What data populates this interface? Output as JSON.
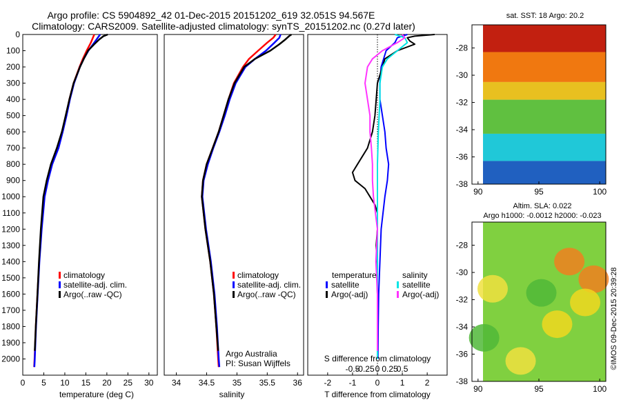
{
  "header": {
    "line1": "Argo profile: CS 5904892_42 01-Dec-2015 20151202_619 32.051S 94.567E",
    "line2": "Climatology: CARS2009. Satellite-adjusted climatology: synTS_20151202.nc (0.27d later)"
  },
  "credits": {
    "org": "Argo Australia",
    "pi": "PI: Susan Wijffels",
    "stamp": "©IMOS 09-Dec-2015 20:39:28"
  },
  "map_labels": {
    "sst_title": "sat. SST: 18 Argo: 20.2",
    "sla_title1": "Altim. SLA: 0.022",
    "sla_title2": "Argo h1000: -0.0012 h2000: -0.023"
  },
  "legends": {
    "temperature_panel": [
      "climatology",
      "satellite-adj. clim.",
      "Argo(..raw -QC)"
    ],
    "salinity_panel": [
      "climatology",
      "satellite-adj. clim.",
      "Argo(..raw -QC)"
    ],
    "diff_panel": {
      "temperature_head": "temperature",
      "salinity_head": "salinity",
      "satellite": "satellite",
      "argo_adj": "Argo(-adj)"
    }
  },
  "colors": {
    "climatology": "#ff0000",
    "satellite": "#0000ff",
    "argo": "#000000",
    "sal_satellite": "#00e5e5",
    "sal_argo": "#ff33ff"
  },
  "chart_data": [
    {
      "type": "line",
      "xlabel": "temperature (deg C)",
      "ylabel": "",
      "xlim": [
        0,
        32
      ],
      "ylim": [
        2100,
        0
      ],
      "xticks": [
        0,
        5,
        10,
        15,
        20,
        25,
        30
      ],
      "yticks": [
        0,
        100,
        200,
        300,
        400,
        500,
        600,
        700,
        800,
        900,
        1000,
        1100,
        1200,
        1300,
        1400,
        1500,
        1600,
        1700,
        1800,
        1900,
        2000
      ],
      "legend": "lower-left",
      "series": [
        {
          "name": "climatology",
          "depth": [
            0,
            50,
            100,
            150,
            200,
            300,
            400,
            500,
            600,
            700,
            800,
            900,
            1000,
            1200,
            1400,
            1600,
            1800,
            2000,
            2050
          ],
          "values": [
            17.0,
            16.2,
            15.2,
            14.3,
            13.5,
            12.1,
            11.1,
            10.3,
            9.4,
            8.3,
            6.8,
            5.9,
            5.1,
            4.4,
            3.9,
            3.5,
            3.1,
            2.8,
            2.7
          ]
        },
        {
          "name": "satellite-adj. clim.",
          "depth": [
            0,
            50,
            100,
            150,
            200,
            300,
            400,
            500,
            600,
            700,
            800,
            900,
            1000,
            1200,
            1400,
            1600,
            1800,
            2000,
            2050
          ],
          "values": [
            18.4,
            17.0,
            15.6,
            14.5,
            13.6,
            12.2,
            11.2,
            10.4,
            9.5,
            8.5,
            7.0,
            6.0,
            5.2,
            4.5,
            3.95,
            3.55,
            3.15,
            2.85,
            2.75
          ]
        },
        {
          "name": "Argo(..raw -QC)",
          "depth": [
            0,
            10,
            30,
            60,
            100,
            150,
            200,
            300,
            400,
            500,
            600,
            700,
            800,
            900,
            1000,
            1200,
            1400,
            1600,
            1800,
            1950
          ],
          "values": [
            20.2,
            19.2,
            18.2,
            17.0,
            15.5,
            14.5,
            13.6,
            12.1,
            11.1,
            10.2,
            9.3,
            8.1,
            6.7,
            5.7,
            4.9,
            4.3,
            3.85,
            3.5,
            3.1,
            2.85
          ]
        }
      ]
    },
    {
      "type": "line",
      "xlabel": "salinity",
      "ylabel": "",
      "xlim": [
        33.8,
        36.1
      ],
      "ylim": [
        2100,
        0
      ],
      "xticks": [
        34,
        34.5,
        35,
        35.5,
        36
      ],
      "legend": "lower-right",
      "series": [
        {
          "name": "climatology",
          "depth": [
            0,
            20,
            50,
            100,
            150,
            200,
            300,
            400,
            500,
            600,
            700,
            800,
            900,
            1000,
            1200,
            1400,
            1600,
            1800,
            2000,
            2050
          ],
          "values": [
            35.64,
            35.6,
            35.5,
            35.35,
            35.2,
            35.1,
            34.95,
            34.86,
            34.78,
            34.7,
            34.6,
            34.5,
            34.44,
            34.42,
            34.48,
            34.56,
            34.62,
            34.66,
            34.69,
            34.7
          ]
        },
        {
          "name": "satellite-adj. clim.",
          "depth": [
            0,
            20,
            50,
            100,
            150,
            200,
            300,
            400,
            500,
            600,
            700,
            800,
            900,
            1000,
            1200,
            1400,
            1600,
            1800,
            2000,
            2050
          ],
          "values": [
            35.72,
            35.7,
            35.62,
            35.48,
            35.3,
            35.14,
            34.98,
            34.88,
            34.8,
            34.71,
            34.61,
            34.52,
            34.45,
            34.43,
            34.49,
            34.57,
            34.63,
            34.67,
            34.7,
            34.71
          ]
        },
        {
          "name": "Argo(..raw -QC)",
          "depth": [
            0,
            10,
            30,
            60,
            100,
            150,
            200,
            300,
            400,
            500,
            600,
            700,
            800,
            900,
            1000,
            1200,
            1400,
            1600,
            1800,
            1950
          ],
          "values": [
            35.9,
            35.86,
            35.8,
            35.7,
            35.55,
            35.3,
            35.12,
            34.96,
            34.86,
            34.78,
            34.7,
            34.6,
            34.5,
            34.44,
            34.42,
            34.48,
            34.56,
            34.62,
            34.66,
            34.69
          ]
        }
      ]
    },
    {
      "type": "line",
      "xlabel": "T difference from climatology",
      "x2label": "S difference from climatology",
      "xlim": [
        -2.8,
        2.8
      ],
      "ylim": [
        2100,
        0
      ],
      "xticks": [
        -2,
        -1,
        0,
        1,
        2
      ],
      "x2ticks": [
        "-0.5",
        "-0.25",
        "0",
        "0.25",
        "0.5"
      ],
      "legend": "lower-center",
      "series": [
        {
          "name": "temperature satellite",
          "depth": [
            0,
            20,
            50,
            100,
            200,
            300,
            400,
            500,
            600,
            700,
            800,
            900,
            1000,
            1200,
            1400,
            1600,
            1800,
            2000
          ],
          "values": [
            1.2,
            0.8,
            0.7,
            0.35,
            0.15,
            0.1,
            0.1,
            0.2,
            0.3,
            0.35,
            0.45,
            0.4,
            0.3,
            0.15,
            0.1,
            0.05,
            0.03,
            0.02
          ]
        },
        {
          "name": "temperature Argo(-adj)",
          "depth": [
            0,
            10,
            20,
            40,
            60,
            100,
            150,
            200,
            300,
            400,
            500,
            600,
            700,
            800,
            850,
            900,
            950,
            1000,
            1050,
            1100,
            1200,
            1300,
            1400,
            1600,
            1800,
            1950
          ],
          "values": [
            2.3,
            1.5,
            1.2,
            1.3,
            1.5,
            0.8,
            0.3,
            0.2,
            0.0,
            -0.05,
            -0.1,
            -0.2,
            -0.4,
            -0.8,
            -1.0,
            -0.9,
            -0.5,
            -0.3,
            -0.1,
            0.0,
            0.0,
            -0.05,
            -0.02,
            0.0,
            0.0,
            0.0
          ]
        },
        {
          "name": "salinity satellite",
          "depth": [
            0,
            20,
            50,
            100,
            150,
            200,
            300,
            400,
            600,
            800,
            1000,
            1200,
            1400,
            1600,
            1800,
            2000
          ],
          "values": [
            0.35,
            0.55,
            0.6,
            0.4,
            0.2,
            0.1,
            0.05,
            0.05,
            0.02,
            0.0,
            0.0,
            0.0,
            0.0,
            0.0,
            0.0,
            0.0
          ]
        },
        {
          "name": "salinity Argo(-adj)",
          "depth": [
            0,
            20,
            50,
            100,
            150,
            200,
            300,
            400,
            500,
            600,
            700,
            800,
            900,
            1000,
            1200,
            1400,
            1600,
            1800,
            1950
          ],
          "values": [
            0.5,
            0.55,
            0.4,
            0.1,
            -0.1,
            -0.2,
            -0.25,
            -0.2,
            -0.15,
            -0.15,
            -0.12,
            -0.1,
            -0.1,
            -0.08,
            0.0,
            -0.03,
            0.0,
            0.0,
            0.0
          ]
        }
      ]
    },
    {
      "type": "heatmap",
      "title": "sat. SST: 18 Argo: 20.2",
      "xlim": [
        89.5,
        100.5
      ],
      "ylim": [
        -38,
        -26.3
      ],
      "xticks": [
        90,
        95,
        100
      ],
      "yticks": [
        -28,
        -30,
        -32,
        -34,
        -36,
        -38
      ],
      "bands": [
        {
          "lat_top": -26.3,
          "lat_bottom": -28.3,
          "color": "#c22010"
        },
        {
          "lat_top": -28.3,
          "lat_bottom": -30.5,
          "color": "#f07810"
        },
        {
          "lat_top": -30.5,
          "lat_bottom": -31.8,
          "color": "#e8c020"
        },
        {
          "lat_top": -31.8,
          "lat_bottom": -34.3,
          "color": "#60c040"
        },
        {
          "lat_top": -34.3,
          "lat_bottom": -36.3,
          "color": "#20c8d8"
        },
        {
          "lat_top": -36.3,
          "lat_bottom": -38.0,
          "color": "#2060c0"
        }
      ]
    },
    {
      "type": "heatmap",
      "title": "Altim. SLA: 0.022",
      "xlim": [
        89.5,
        100.5
      ],
      "ylim": [
        -38,
        -26.3
      ],
      "xticks": [
        90,
        95,
        100
      ],
      "yticks": [
        -28,
        -30,
        -32,
        -34,
        -36,
        -38
      ],
      "background": "#80d040",
      "blobs": [
        {
          "lon": 97.5,
          "lat": -29.2,
          "color": "#f08020"
        },
        {
          "lon": 99.5,
          "lat": -30.5,
          "color": "#f08020"
        },
        {
          "lon": 96.5,
          "lat": -33.8,
          "color": "#f0d820"
        },
        {
          "lon": 98.8,
          "lat": -32.2,
          "color": "#f0d820"
        },
        {
          "lon": 91.2,
          "lat": -31.2,
          "color": "#f0e040"
        },
        {
          "lon": 93.5,
          "lat": -36.5,
          "color": "#f0e040"
        },
        {
          "lon": 95.2,
          "lat": -31.5,
          "color": "#50b838"
        },
        {
          "lon": 90.5,
          "lat": -34.8,
          "color": "#50b838"
        }
      ]
    }
  ]
}
